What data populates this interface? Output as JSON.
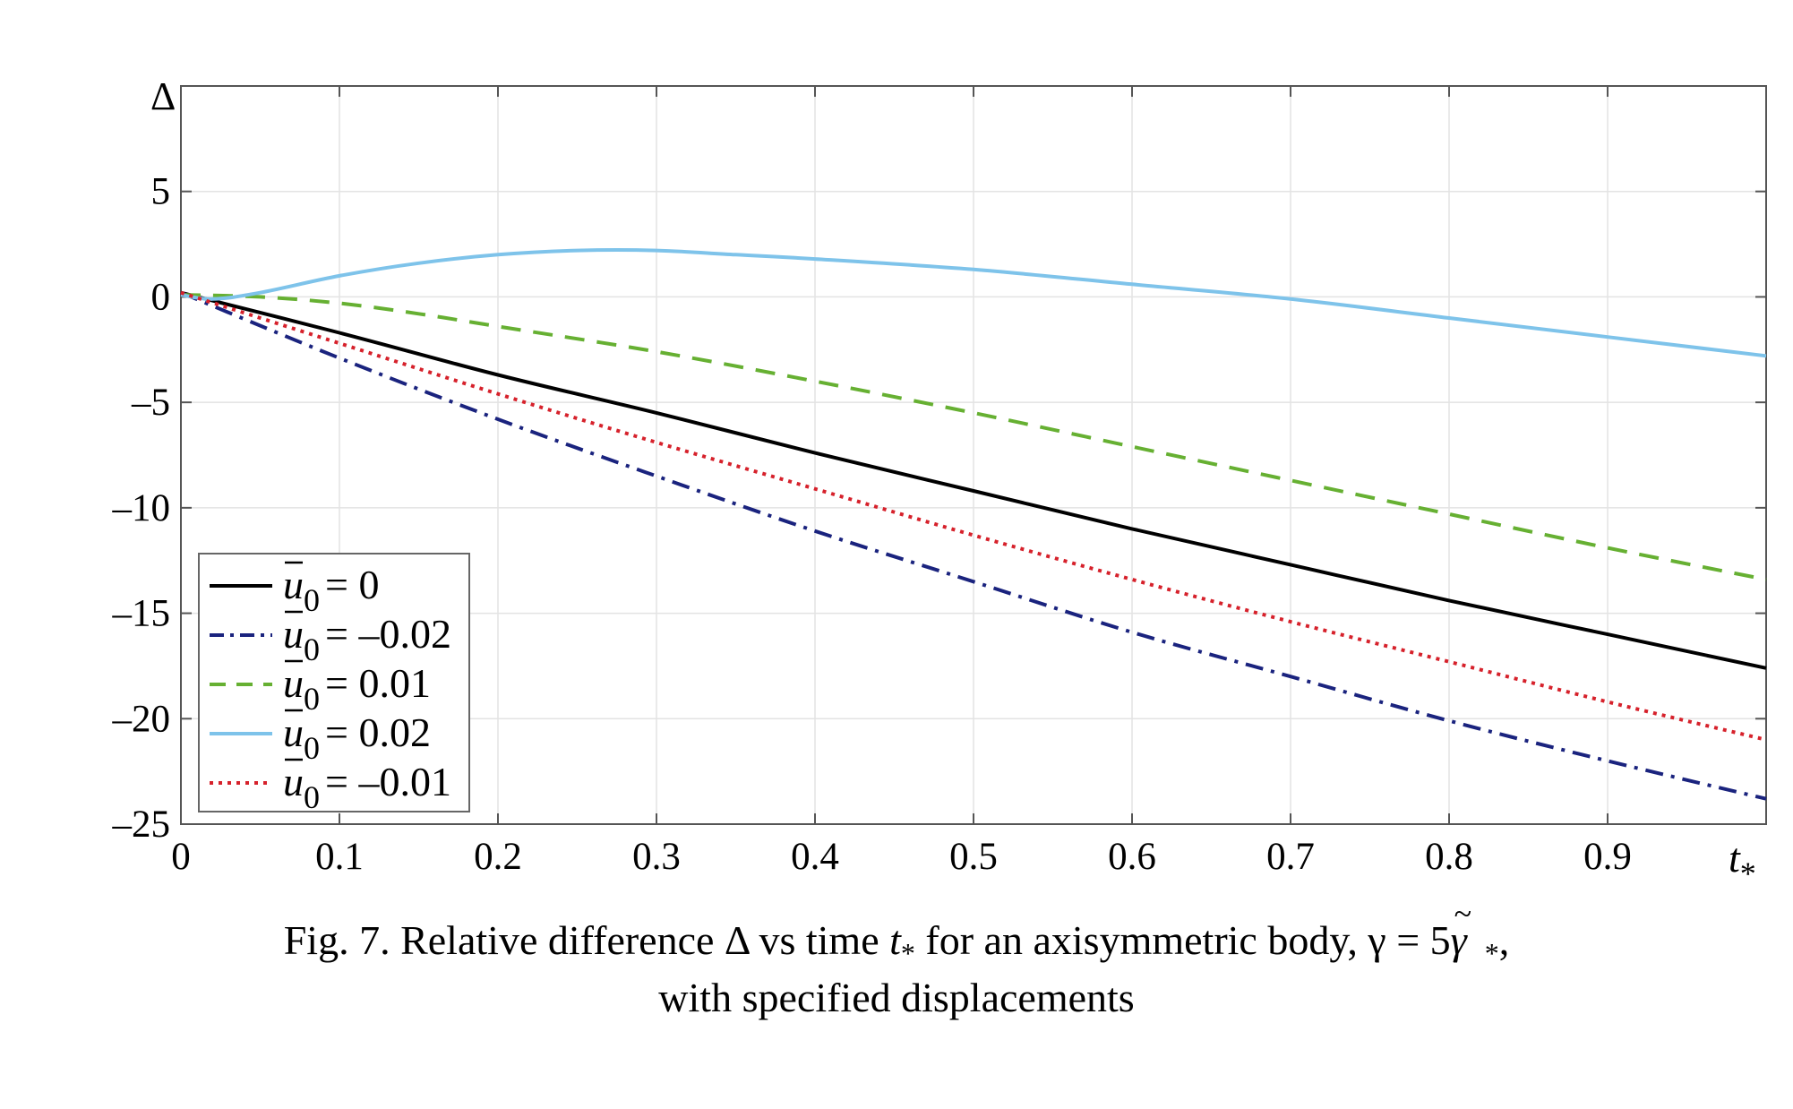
{
  "chart_data": {
    "type": "line",
    "ylabel": "Δ",
    "xlabel_main": "t",
    "xlabel_sub": "*",
    "xlim": [
      0,
      1
    ],
    "ylim": [
      -25,
      10
    ],
    "x_ticks": [
      0,
      0.1,
      0.2,
      0.3,
      0.4,
      0.5,
      0.6,
      0.7,
      0.8,
      0.9
    ],
    "x_tick_labels": [
      "0",
      "0.1",
      "0.2",
      "0.3",
      "0.4",
      "0.5",
      "0.6",
      "0.7",
      "0.8",
      "0.9"
    ],
    "y_ticks": [
      5,
      0,
      -5,
      -10,
      -15,
      -20,
      -25
    ],
    "y_tick_labels": [
      "5",
      "0",
      "–5",
      "–10",
      "–15",
      "–20",
      "–25"
    ],
    "grid": true,
    "legend_position": "lower-left",
    "series": [
      {
        "name": "= 0",
        "color": "#000000",
        "style": "solid",
        "x": [
          0,
          0.1,
          0.2,
          0.3,
          0.4,
          0.5,
          0.6,
          0.7,
          0.8,
          0.9,
          1.0
        ],
        "y": [
          0.2,
          -1.7,
          -3.7,
          -5.5,
          -7.4,
          -9.2,
          -11.0,
          -12.7,
          -14.4,
          -16.0,
          -17.6
        ]
      },
      {
        "name": "= –0.02",
        "color": "#1a237e",
        "style": "dashdot",
        "x": [
          0,
          0.1,
          0.2,
          0.3,
          0.4,
          0.5,
          0.6,
          0.7,
          0.8,
          0.9,
          1.0
        ],
        "y": [
          0.2,
          -2.9,
          -5.8,
          -8.5,
          -11.1,
          -13.5,
          -15.9,
          -18.0,
          -20.1,
          -22.0,
          -23.8
        ]
      },
      {
        "name": "= 0.01",
        "color": "#66b032",
        "style": "dashed",
        "x": [
          0,
          0.05,
          0.1,
          0.15,
          0.2,
          0.3,
          0.4,
          0.5,
          0.6,
          0.7,
          0.8,
          0.9,
          1.0
        ],
        "y": [
          0.1,
          0.0,
          -0.3,
          -0.8,
          -1.4,
          -2.6,
          -4.0,
          -5.5,
          -7.1,
          -8.7,
          -10.3,
          -11.9,
          -13.4
        ]
      },
      {
        "name": "= 0.02",
        "color": "#7ec3ea",
        "style": "solid",
        "x": [
          0,
          0.02,
          0.05,
          0.1,
          0.15,
          0.2,
          0.25,
          0.3,
          0.35,
          0.4,
          0.5,
          0.6,
          0.7,
          0.8,
          0.9,
          1.0
        ],
        "y": [
          0.1,
          -0.1,
          0.2,
          1.0,
          1.6,
          2.0,
          2.2,
          2.2,
          2.0,
          1.8,
          1.3,
          0.6,
          -0.1,
          -1.0,
          -1.9,
          -2.8
        ]
      },
      {
        "name": "= –0.01",
        "color": "#d6212b",
        "style": "dotted",
        "x": [
          0,
          0.1,
          0.2,
          0.3,
          0.4,
          0.5,
          0.6,
          0.7,
          0.8,
          0.9,
          1.0
        ],
        "y": [
          0.2,
          -2.2,
          -4.6,
          -6.9,
          -9.1,
          -11.3,
          -13.4,
          -15.4,
          -17.3,
          -19.2,
          -21.0
        ]
      }
    ],
    "legend_symbol_main": "u",
    "legend_symbol_sub": "0"
  },
  "caption": {
    "line1_prefix": "Fig. 7. Relative difference Δ vs time ",
    "line1_t": "t",
    "line1_t_sub": "*",
    "line1_mid": " for an axisymmetric body, γ = 5",
    "line1_gamma": "γ",
    "line1_tilde": "~",
    "line1_gamma_sub": "*",
    "line1_end": ",",
    "line2": "with specified displacements"
  }
}
